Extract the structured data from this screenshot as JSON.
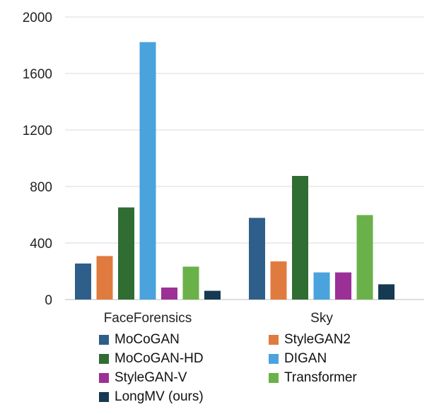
{
  "chart_data": {
    "type": "bar",
    "title": "",
    "xlabel": "",
    "ylabel": "",
    "categories": [
      "FaceForensics",
      "Sky"
    ],
    "ylim": [
      0,
      2000
    ],
    "yticks": [
      "0",
      "400",
      "800",
      "1200",
      "1600",
      "2000"
    ],
    "grid": true,
    "legend_position": "bottom",
    "series": [
      {
        "name": "MoCoGAN",
        "color": "#2e5f8a",
        "values": [
          255,
          578
        ]
      },
      {
        "name": "StyleGAN2",
        "color": "#e07b3f",
        "values": [
          308,
          270
        ]
      },
      {
        "name": "MoCoGAN-HD",
        "color": "#2f6d32",
        "values": [
          652,
          875
        ]
      },
      {
        "name": "DIGAN",
        "color": "#4aa3dc",
        "values": [
          1822,
          192
        ]
      },
      {
        "name": "StyleGAN-V",
        "color": "#9b3197",
        "values": [
          85,
          192
        ]
      },
      {
        "name": "Transformer",
        "color": "#6ab14a",
        "values": [
          233,
          598
        ]
      },
      {
        "name": "LongMV (ours)",
        "color": "#163a52",
        "values": [
          62,
          108
        ]
      }
    ]
  }
}
